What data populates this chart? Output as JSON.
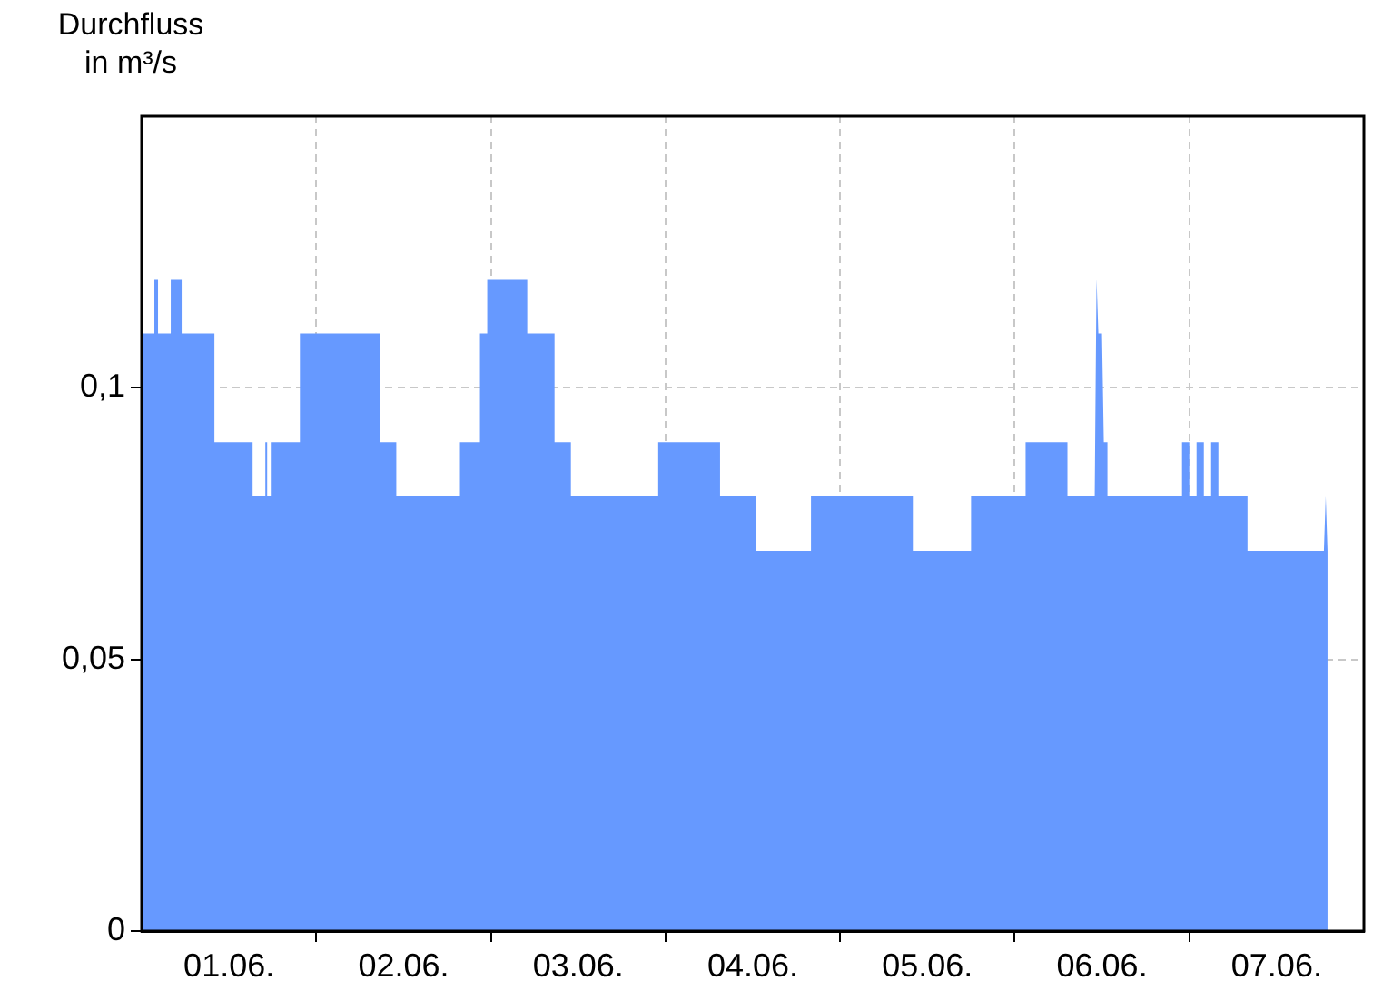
{
  "chart_data": {
    "type": "area",
    "ylabel": "Durchfluss in m³/s",
    "x": [
      "--06-01T00:00",
      "--06-01T01:45",
      "--06-01T01:45",
      "--06-01T02:15",
      "--06-01T02:15",
      "--06-01T04:00",
      "--06-01T04:00",
      "--06-01T05:30",
      "--06-01T05:30",
      "--06-01T10:00",
      "--06-01T10:00",
      "--06-01T15:15",
      "--06-01T15:15",
      "--06-01T17:00",
      "--06-01T17:00",
      "--06-01T17:15",
      "--06-01T17:15",
      "--06-01T17:45",
      "--06-01T17:45",
      "--06-01T21:45",
      "--06-01T21:45",
      "--06-02T08:45",
      "--06-02T08:45",
      "--06-02T11:00",
      "--06-02T11:00",
      "--06-02T19:45",
      "--06-02T19:45",
      "--06-02T22:30",
      "--06-02T22:30",
      "--06-02T23:30",
      "--06-02T23:30",
      "--06-03T05:00",
      "--06-03T05:00",
      "--06-03T08:45",
      "--06-03T08:45",
      "--06-03T11:00",
      "--06-03T11:00",
      "--06-03T23:00",
      "--06-03T23:00",
      "--06-04T07:30",
      "--06-04T07:30",
      "--06-04T12:30",
      "--06-04T12:30",
      "--06-04T20:00",
      "--06-04T20:00",
      "--06-05T10:00",
      "--06-05T10:00",
      "--06-05T18:00",
      "--06-05T18:00",
      "--06-06T01:30",
      "--06-06T01:30",
      "--06-06T07:15",
      "--06-06T07:15",
      "--06-06T11:00",
      "--06-06T11:15",
      "--06-06T11:30",
      "--06-06T12:00",
      "--06-06T12:15",
      "--06-06T12:45",
      "--06-06T12:45",
      "--06-06T23:00",
      "--06-06T23:00",
      "--06-07T00:00",
      "--06-07T00:00",
      "--06-07T01:00",
      "--06-07T01:00",
      "--06-07T02:00",
      "--06-07T02:00",
      "--06-07T03:00",
      "--06-07T03:00",
      "--06-07T04:00",
      "--06-07T04:00",
      "--06-07T08:00",
      "--06-07T08:00",
      "--06-07T18:30",
      "--06-07T18:45",
      "--06-07T19:00"
    ],
    "series": [
      {
        "color": "#6699ff",
        "values": [
          0.11,
          0.11,
          0.12,
          0.12,
          0.11,
          0.11,
          0.12,
          0.12,
          0.11,
          0.11,
          0.09,
          0.09,
          0.08,
          0.08,
          0.09,
          0.09,
          0.08,
          0.08,
          0.09,
          0.09,
          0.11,
          0.11,
          0.09,
          0.09,
          0.08,
          0.08,
          0.09,
          0.09,
          0.11,
          0.11,
          0.12,
          0.12,
          0.11,
          0.11,
          0.09,
          0.09,
          0.08,
          0.08,
          0.09,
          0.09,
          0.08,
          0.08,
          0.07,
          0.07,
          0.08,
          0.08,
          0.07,
          0.07,
          0.08,
          0.08,
          0.09,
          0.09,
          0.08,
          0.08,
          0.12,
          0.11,
          0.11,
          0.09,
          0.09,
          0.08,
          0.08,
          0.09,
          0.09,
          0.08,
          0.08,
          0.09,
          0.09,
          0.08,
          0.08,
          0.09,
          0.09,
          0.08,
          0.08,
          0.07,
          0.07,
          0.08,
          0.07
        ]
      }
    ],
    "xlim": [
      "--06-01T00:00",
      "--06-08T00:00"
    ],
    "xticks": [
      {
        "value": "--06-01T12:00",
        "label": "01.06."
      },
      {
        "value": "--06-02T00:00",
        "label": null
      },
      {
        "value": "--06-02T12:00",
        "label": "02.06."
      },
      {
        "value": "--06-03T00:00",
        "label": null
      },
      {
        "value": "--06-03T12:00",
        "label": "03.06."
      },
      {
        "value": "--06-04T00:00",
        "label": null
      },
      {
        "value": "--06-04T12:00",
        "label": "04.06."
      },
      {
        "value": "--06-05T00:00",
        "label": null
      },
      {
        "value": "--06-05T12:00",
        "label": "05.06."
      },
      {
        "value": "--06-06T00:00",
        "label": null
      },
      {
        "value": "--06-06T12:00",
        "label": "06.06."
      },
      {
        "value": "--06-07T00:00",
        "label": null
      },
      {
        "value": "--06-07T12:00",
        "label": "07.06."
      }
    ],
    "ylim": [
      0,
      0.15
    ],
    "yticks": [
      0,
      {
        "value": 0.05,
        "label": "0,05"
      },
      {
        "value": 0.1,
        "label": "0,1"
      }
    ],
    "grid": true
  }
}
